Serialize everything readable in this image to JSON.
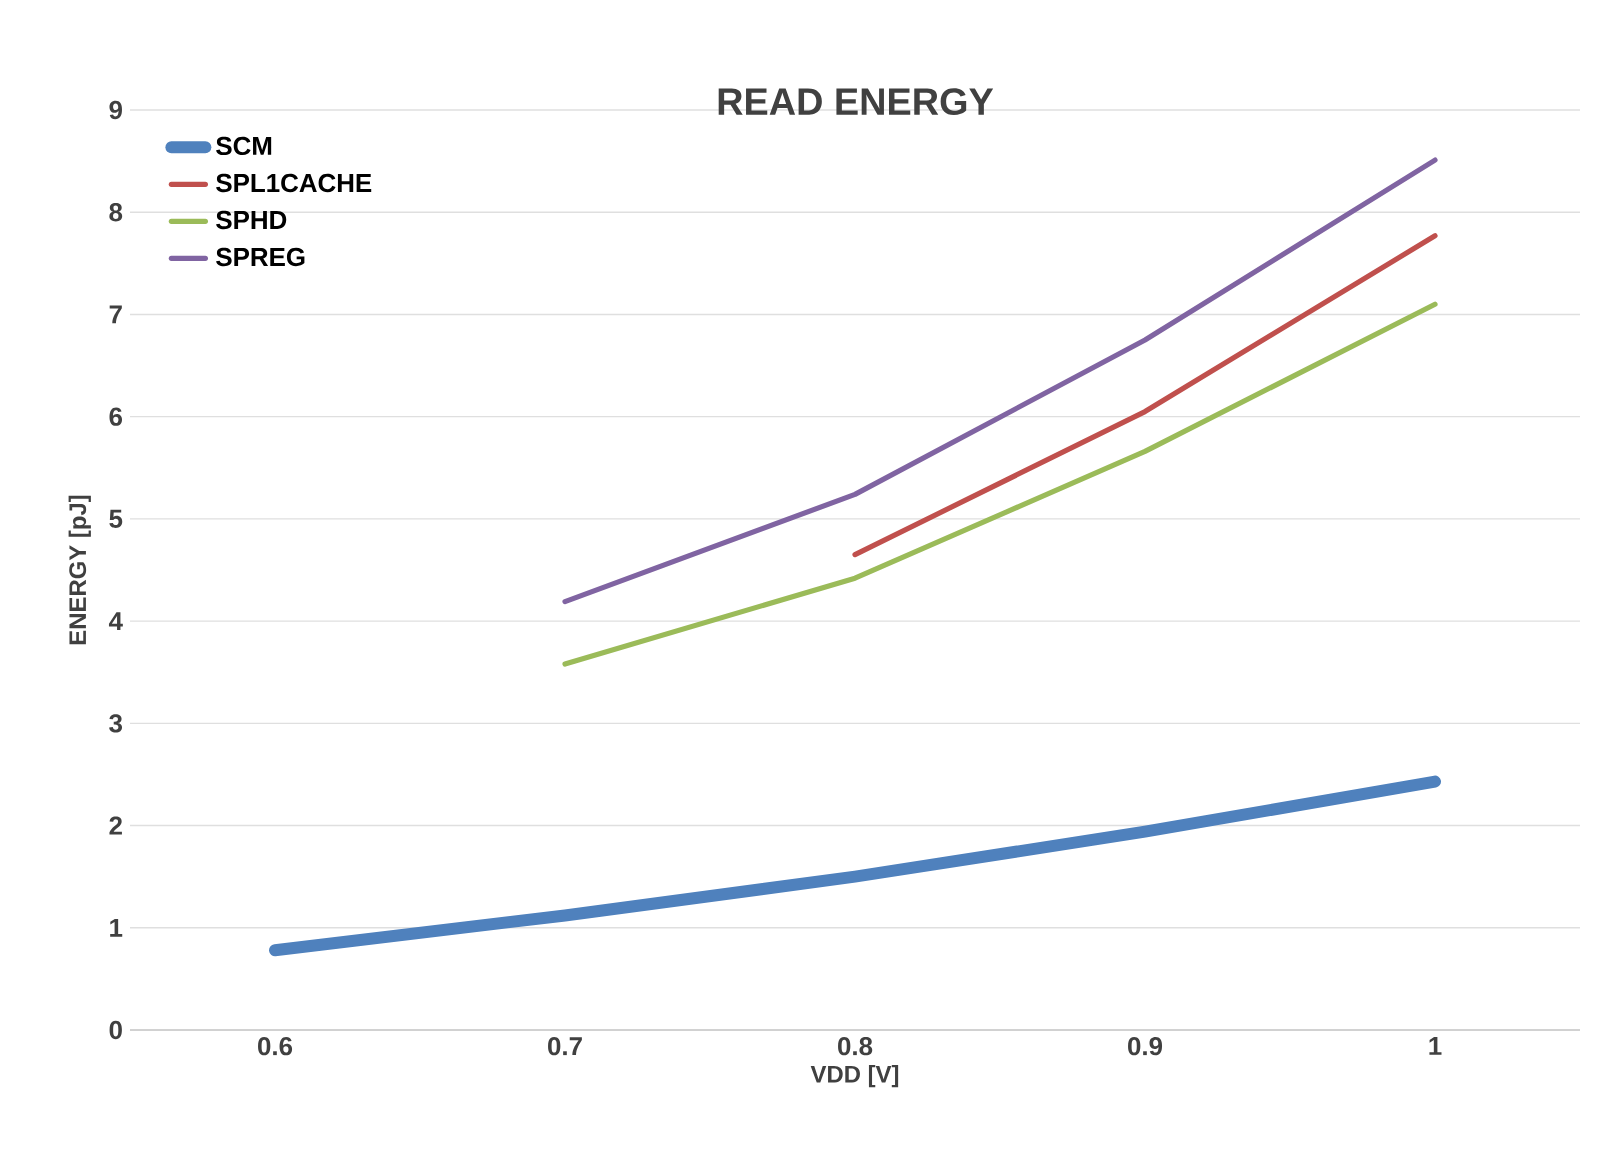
{
  "chart_data": {
    "type": "line",
    "title": "READ ENERGY",
    "xlabel": "VDD [V]",
    "ylabel": "ENERGY [pJ]",
    "categories": [
      "0.6",
      "0.7",
      "0.8",
      "0.9",
      "1"
    ],
    "series": [
      {
        "name": "SCM",
        "color": "#4f81bd",
        "values": [
          0.78,
          1.12,
          1.5,
          1.94,
          2.43
        ]
      },
      {
        "name": "SPL1CACHE",
        "color": "#c0504d",
        "values": [
          null,
          null,
          4.65,
          6.05,
          7.77
        ]
      },
      {
        "name": "SPHD",
        "color": "#9bbb59",
        "values": [
          null,
          3.58,
          4.42,
          5.66,
          7.1
        ]
      },
      {
        "name": "SPREG",
        "color": "#8064a2",
        "values": [
          null,
          4.19,
          5.24,
          6.75,
          8.51
        ]
      }
    ],
    "ylim": [
      0,
      9
    ],
    "yticks": [
      0,
      1,
      2,
      3,
      4,
      5,
      6,
      7,
      8,
      9
    ],
    "grid": "y",
    "legend": "top left",
    "marker": "none",
    "line_style": "solid"
  }
}
